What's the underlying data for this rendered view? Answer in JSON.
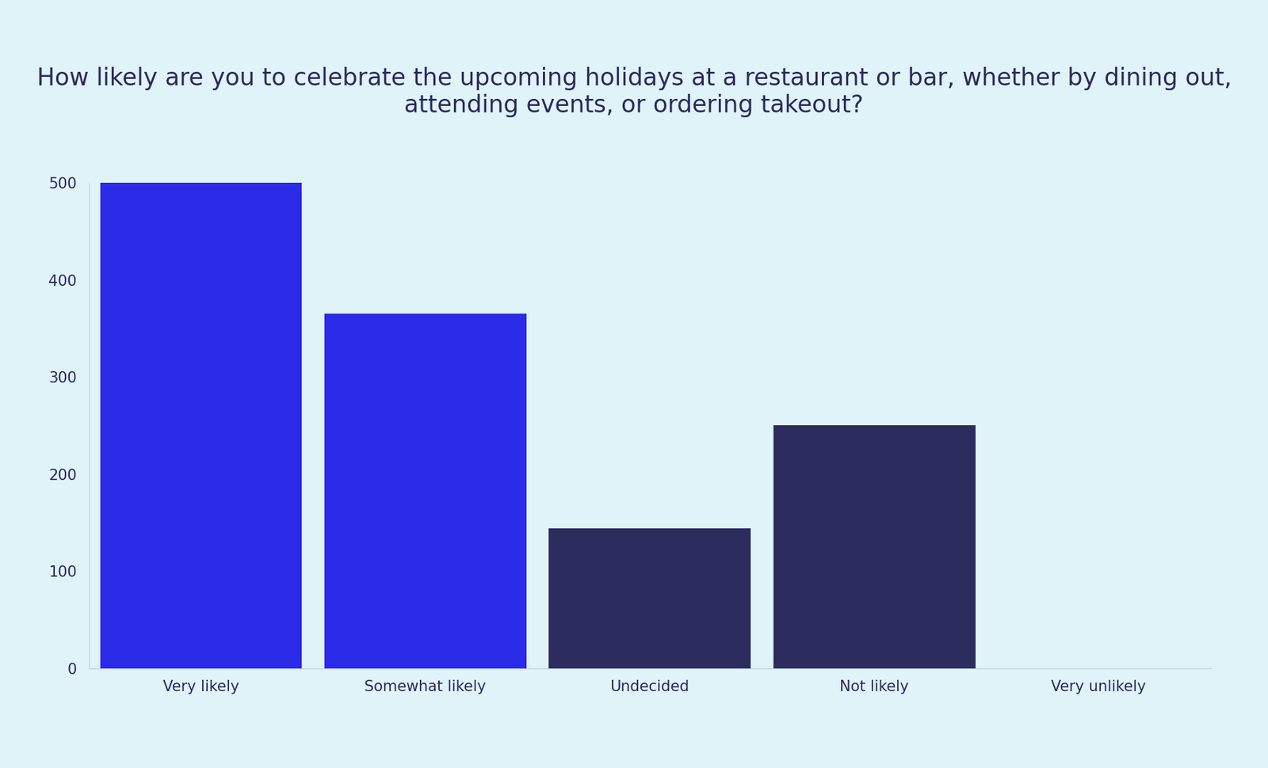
{
  "chart_data": {
    "type": "bar",
    "title": "How likely are you to celebrate the upcoming holidays at a restaurant or bar, whether by dining out, attending events, or ordering takeout?",
    "categories": [
      "Very likely",
      "Somewhat likely",
      "Undecided",
      "Not likely",
      "Very unlikely"
    ],
    "values": [
      500,
      365,
      144,
      250,
      0
    ],
    "colors": [
      "#2b2be8",
      "#2b2be8",
      "#2c2c5e",
      "#2c2c5e",
      "#2c2c5e"
    ],
    "ylim": [
      0,
      500
    ],
    "yticks": [
      0,
      100,
      200,
      300,
      400,
      500
    ],
    "grid": false
  }
}
